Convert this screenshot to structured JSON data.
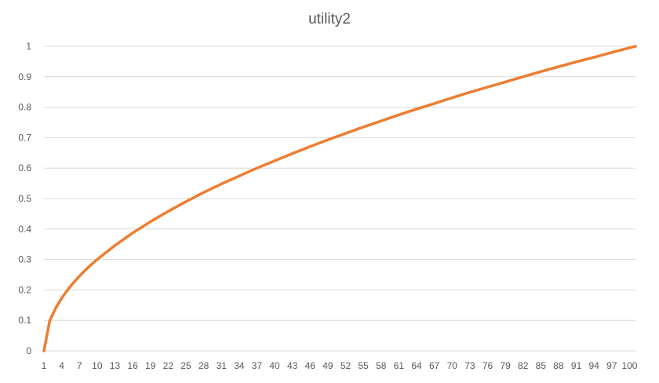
{
  "chart_data": {
    "type": "line",
    "title": "utility2",
    "xlabel": "",
    "ylabel": "",
    "ylim": [
      0,
      1
    ],
    "yticks": [
      "0",
      "0.1",
      "0.2",
      "0.3",
      "0.4",
      "0.5",
      "0.6",
      "0.7",
      "0.8",
      "0.9",
      "1"
    ],
    "xticks": [
      "1",
      "4",
      "7",
      "10",
      "13",
      "16",
      "19",
      "22",
      "25",
      "28",
      "31",
      "34",
      "37",
      "40",
      "43",
      "46",
      "49",
      "52",
      "55",
      "58",
      "61",
      "64",
      "67",
      "70",
      "73",
      "76",
      "79",
      "82",
      "85",
      "88",
      "91",
      "94",
      "97",
      "100"
    ],
    "x_range": [
      1,
      101
    ],
    "grid": true,
    "legend": "none",
    "series": [
      {
        "color": "#ED7D31",
        "x": [
          1,
          2,
          3,
          4,
          5,
          6,
          7,
          8,
          9,
          10,
          13,
          16,
          19,
          22,
          25,
          28,
          31,
          34,
          37,
          40,
          43,
          46,
          49,
          52,
          55,
          58,
          61,
          64,
          67,
          70,
          73,
          76,
          79,
          82,
          85,
          88,
          91,
          94,
          97,
          100,
          101
        ],
        "values": [
          0,
          0.1,
          0.141,
          0.173,
          0.2,
          0.224,
          0.245,
          0.265,
          0.283,
          0.3,
          0.346,
          0.387,
          0.424,
          0.458,
          0.49,
          0.52,
          0.548,
          0.574,
          0.6,
          0.624,
          0.648,
          0.671,
          0.693,
          0.714,
          0.735,
          0.755,
          0.775,
          0.794,
          0.812,
          0.831,
          0.849,
          0.866,
          0.883,
          0.9,
          0.917,
          0.933,
          0.949,
          0.964,
          0.98,
          0.995,
          1.0
        ]
      }
    ]
  },
  "colors": {
    "line": "#ED7D31",
    "grid": "#D9D9D9",
    "text": "#595959"
  }
}
